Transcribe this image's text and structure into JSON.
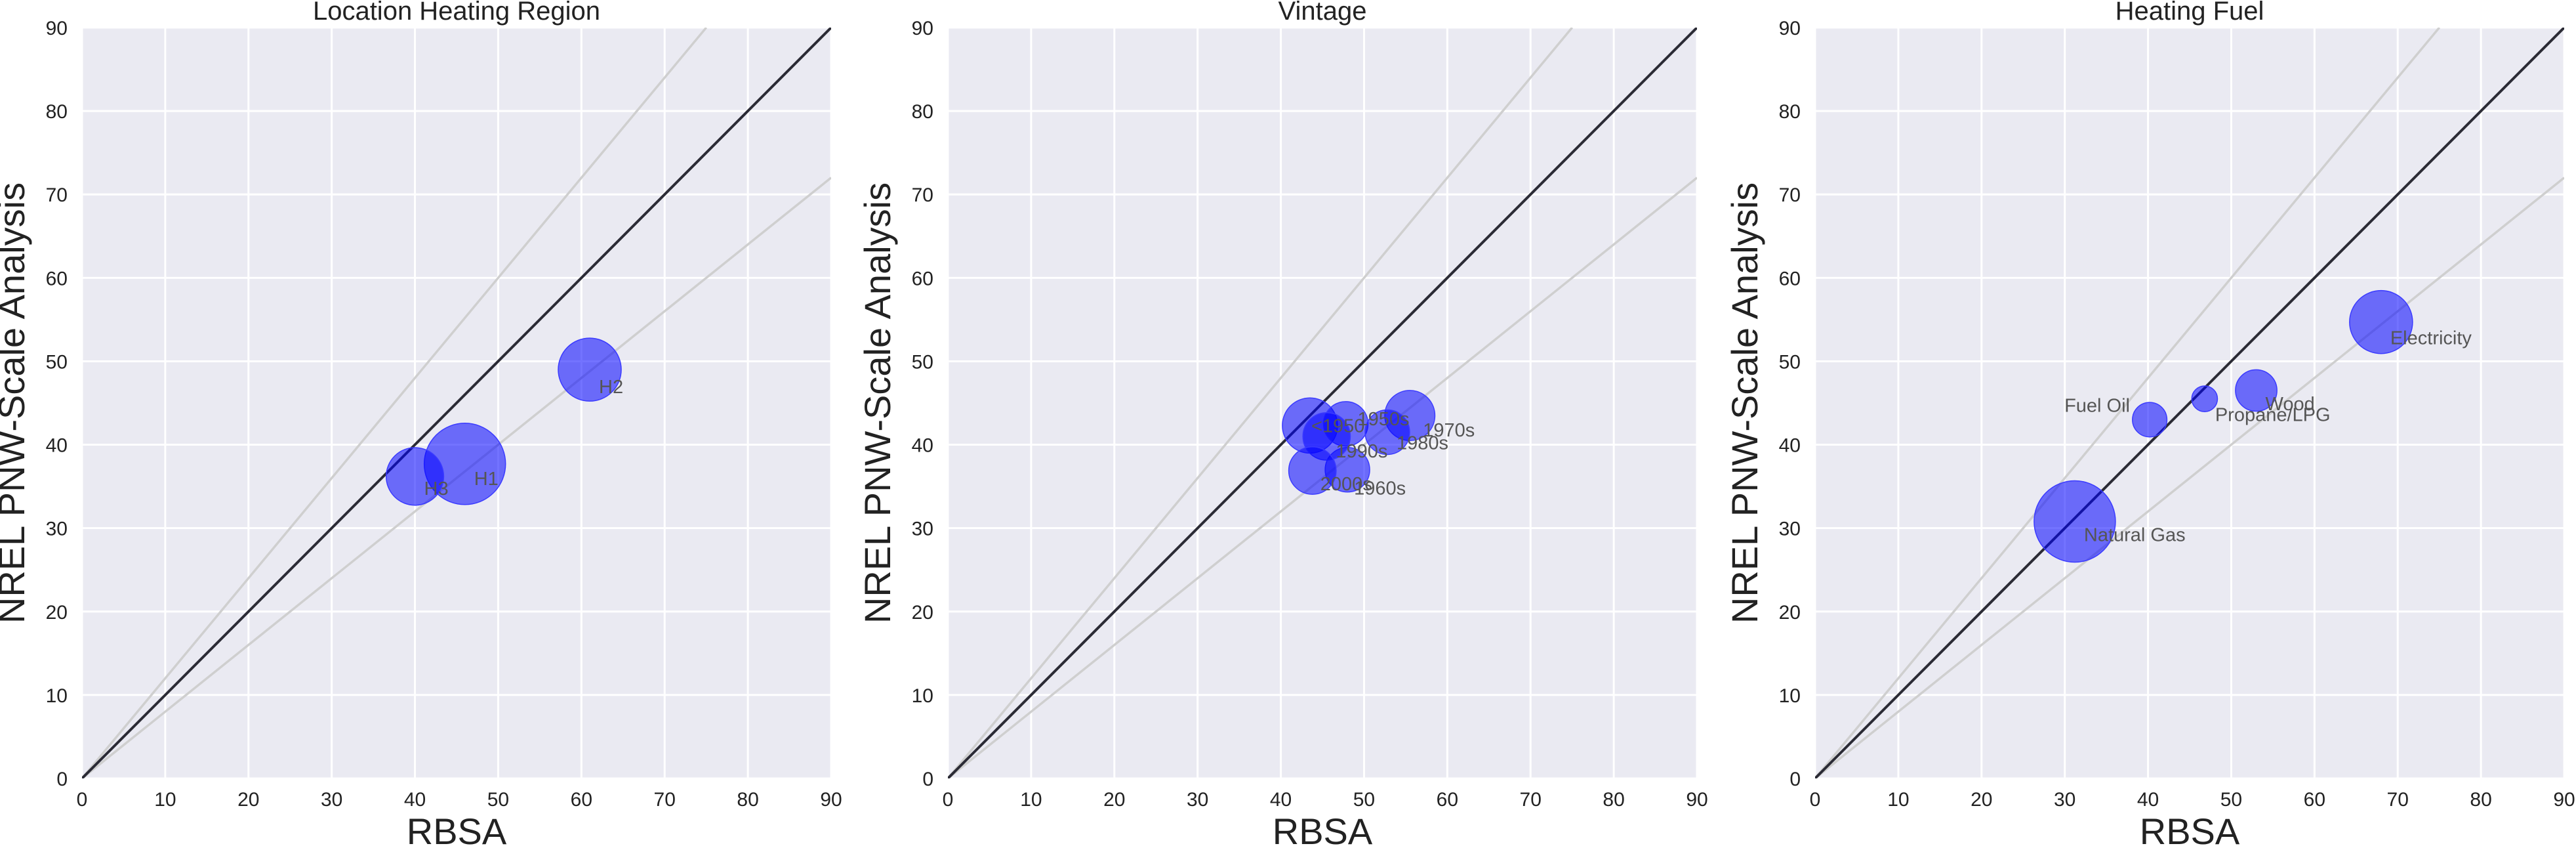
{
  "chart_data": [
    {
      "type": "scatter",
      "title": "Location Heating Region",
      "xlabel": "RBSA",
      "ylabel": "NREL PNW-Scale Analysis",
      "xlim": [
        0,
        90
      ],
      "ylim": [
        0,
        90
      ],
      "xticks": [
        "0",
        "10",
        "20",
        "30",
        "40",
        "50",
        "60",
        "70",
        "80",
        "90"
      ],
      "yticks": [
        "0",
        "10",
        "20",
        "30",
        "40",
        "50",
        "60",
        "70",
        "80",
        "90"
      ],
      "reference_lines": [
        {
          "kind": "identity",
          "slope": 1.0,
          "color": "#2b2b35"
        },
        {
          "kind": "guide",
          "slope": 1.2,
          "color": "#cfcfcf"
        },
        {
          "kind": "guide",
          "slope": 0.8,
          "color": "#cfcfcf"
        }
      ],
      "grid": true,
      "marker_color": "#0000ff",
      "points": [
        {
          "label": "H1",
          "x": 46.0,
          "y": 37.7,
          "size": 1.0
        },
        {
          "label": "H2",
          "x": 61.0,
          "y": 49.0,
          "size": 0.6
        },
        {
          "label": "H3",
          "x": 40.0,
          "y": 36.2,
          "size": 0.5
        }
      ]
    },
    {
      "type": "scatter",
      "title": "Vintage",
      "xlabel": "RBSA",
      "ylabel": "NREL PNW-Scale Analysis",
      "xlim": [
        0,
        90
      ],
      "ylim": [
        0,
        90
      ],
      "xticks": [
        "0",
        "10",
        "20",
        "30",
        "40",
        "50",
        "60",
        "70",
        "80",
        "90"
      ],
      "yticks": [
        "0",
        "10",
        "20",
        "30",
        "40",
        "50",
        "60",
        "70",
        "80",
        "90"
      ],
      "reference_lines": [
        {
          "kind": "identity",
          "slope": 1.0,
          "color": "#2b2b35"
        },
        {
          "kind": "guide",
          "slope": 1.2,
          "color": "#cfcfcf"
        },
        {
          "kind": "guide",
          "slope": 0.8,
          "color": "#cfcfcf"
        }
      ],
      "grid": true,
      "marker_color": "#0000ff",
      "points": [
        {
          "label": "<1950",
          "x": 43.5,
          "y": 42.3,
          "size": 0.46
        },
        {
          "label": "1950s",
          "x": 47.8,
          "y": 42.5,
          "size": 0.3
        },
        {
          "label": "1960s",
          "x": 48.0,
          "y": 37.0,
          "size": 0.3
        },
        {
          "label": "1970s",
          "x": 55.5,
          "y": 43.5,
          "size": 0.38
        },
        {
          "label": "1980s",
          "x": 52.8,
          "y": 41.5,
          "size": 0.3
        },
        {
          "label": "1990s",
          "x": 45.5,
          "y": 41.0,
          "size": 0.34
        },
        {
          "label": "2000s",
          "x": 43.8,
          "y": 36.9,
          "size": 0.34
        }
      ]
    },
    {
      "type": "scatter",
      "title": "Heating Fuel",
      "xlabel": "RBSA",
      "ylabel": "NREL PNW-Scale Analysis",
      "xlim": [
        0,
        90
      ],
      "ylim": [
        0,
        90
      ],
      "xticks": [
        "0",
        "10",
        "20",
        "30",
        "40",
        "50",
        "60",
        "70",
        "80",
        "90"
      ],
      "yticks": [
        "0",
        "10",
        "20",
        "30",
        "40",
        "50",
        "60",
        "70",
        "80",
        "90"
      ],
      "reference_lines": [
        {
          "kind": "identity",
          "slope": 1.0,
          "color": "#2b2b35"
        },
        {
          "kind": "guide",
          "slope": 1.2,
          "color": "#cfcfcf"
        },
        {
          "kind": "guide",
          "slope": 0.8,
          "color": "#cfcfcf"
        }
      ],
      "grid": true,
      "marker_color": "#0000ff",
      "points": [
        {
          "label": "Electricity",
          "x": 68.0,
          "y": 54.7,
          "size": 0.6
        },
        {
          "label": "Fuel Oil",
          "x": 40.2,
          "y": 43.0,
          "size": 0.18
        },
        {
          "label": "Natural Gas",
          "x": 31.2,
          "y": 30.8,
          "size": 1.0
        },
        {
          "label": "Propane/LPG",
          "x": 46.8,
          "y": 45.5,
          "size": 0.1
        },
        {
          "label": "Wood",
          "x": 53.0,
          "y": 46.5,
          "size": 0.26
        }
      ]
    }
  ]
}
